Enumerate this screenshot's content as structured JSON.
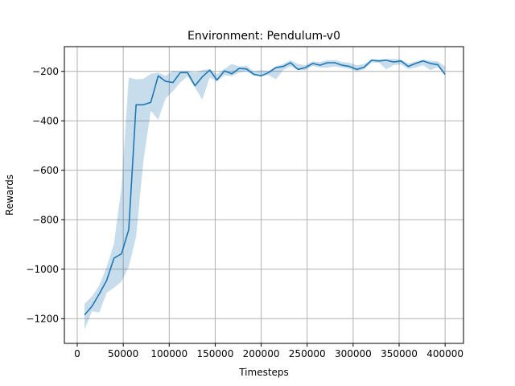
{
  "chart_data": {
    "type": "line",
    "title": "Environment: Pendulum-v0",
    "xlabel": "Timesteps",
    "ylabel": "Rewards",
    "xlim": [
      -14000,
      420000
    ],
    "ylim": [
      -1300,
      -100
    ],
    "xticks": [
      0,
      50000,
      100000,
      150000,
      200000,
      250000,
      300000,
      350000,
      400000
    ],
    "xtick_labels": [
      "0",
      "50000",
      "100000",
      "150000",
      "200000",
      "250000",
      "300000",
      "350000",
      "400000"
    ],
    "yticks": [
      -1200,
      -1000,
      -800,
      -600,
      -400,
      -200
    ],
    "ytick_labels": [
      "−1200",
      "−1000",
      "−800",
      "−600",
      "−400",
      "−200"
    ],
    "grid": true,
    "line_color": "#1f77b4",
    "band_color": "#1f77b4",
    "band_opacity": 0.25,
    "series": [
      {
        "x": [
          8000,
          16000,
          24000,
          32000,
          40000,
          48000,
          56000,
          64000,
          72000,
          80000,
          88000,
          96000,
          104000,
          112000,
          120000,
          128000,
          136000,
          144000,
          152000,
          160000,
          168000,
          176000,
          184000,
          192000,
          200000,
          208000,
          216000,
          224000,
          232000,
          240000,
          248000,
          256000,
          264000,
          272000,
          280000,
          288000,
          296000,
          304000,
          312000,
          320000,
          328000,
          336000,
          344000,
          352000,
          360000,
          368000,
          376000,
          384000,
          392000,
          400000
        ],
        "y": [
          -1185,
          -1150,
          -1100,
          -1045,
          -955,
          -938,
          -840,
          -335,
          -335,
          -325,
          -218,
          -240,
          -245,
          -205,
          -205,
          -258,
          -222,
          -195,
          -235,
          -198,
          -210,
          -188,
          -190,
          -212,
          -218,
          -205,
          -185,
          -180,
          -165,
          -192,
          -185,
          -168,
          -175,
          -165,
          -165,
          -175,
          -180,
          -192,
          -183,
          -155,
          -158,
          -155,
          -162,
          -158,
          -180,
          -168,
          -158,
          -168,
          -173,
          -213
        ],
        "lower": [
          -1245,
          -1170,
          -1175,
          -1095,
          -1075,
          -1050,
          -990,
          -870,
          -560,
          -360,
          -395,
          -310,
          -280,
          -245,
          -220,
          -265,
          -315,
          -225,
          -240,
          -215,
          -220,
          -205,
          -200,
          -218,
          -218,
          -215,
          -232,
          -195,
          -180,
          -195,
          -195,
          -178,
          -185,
          -185,
          -180,
          -185,
          -190,
          -200,
          -192,
          -165,
          -165,
          -192,
          -175,
          -172,
          -190,
          -185,
          -175,
          -195,
          -183,
          -210
        ],
        "upper": [
          -1140,
          -1110,
          -1065,
          -990,
          -895,
          -670,
          -225,
          -232,
          -230,
          -210,
          -205,
          -218,
          -198,
          -200,
          -198,
          -205,
          -195,
          -190,
          -212,
          -190,
          -170,
          -180,
          -178,
          -200,
          -195,
          -198,
          -180,
          -170,
          -155,
          -170,
          -175,
          -160,
          -162,
          -155,
          -155,
          -162,
          -165,
          -175,
          -170,
          -152,
          -152,
          -150,
          -150,
          -152,
          -168,
          -160,
          -152,
          -158,
          -160,
          -180
        ]
      }
    ]
  }
}
